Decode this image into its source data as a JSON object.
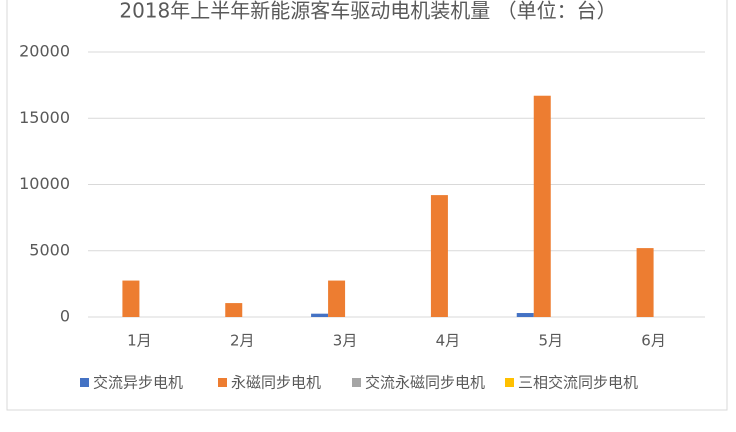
{
  "chart_data": {
    "type": "bar",
    "title": "2018年上半年新能源客车驱动电机装机量 （单位：台）",
    "categories": [
      "1月",
      "2月",
      "3月",
      "4月",
      "5月",
      "6月"
    ],
    "series": [
      {
        "name": "交流异步电机",
        "color": "#4472c4",
        "values": [
          0,
          0,
          250,
          0,
          300,
          0
        ]
      },
      {
        "name": "永磁同步电机",
        "color": "#ed7d31",
        "values": [
          2750,
          1050,
          2750,
          9200,
          16700,
          5200
        ]
      },
      {
        "name": "交流永磁同步电机",
        "color": "#a5a5a5",
        "values": [
          0,
          0,
          0,
          0,
          0,
          0
        ]
      },
      {
        "name": "三相交流同步电机",
        "color": "#ffc000",
        "values": [
          0,
          0,
          0,
          0,
          0,
          0
        ]
      }
    ],
    "ylim": [
      0,
      20000
    ],
    "yticks": [
      0,
      5000,
      10000,
      15000,
      20000
    ],
    "grid": true,
    "legend": "bottom"
  }
}
